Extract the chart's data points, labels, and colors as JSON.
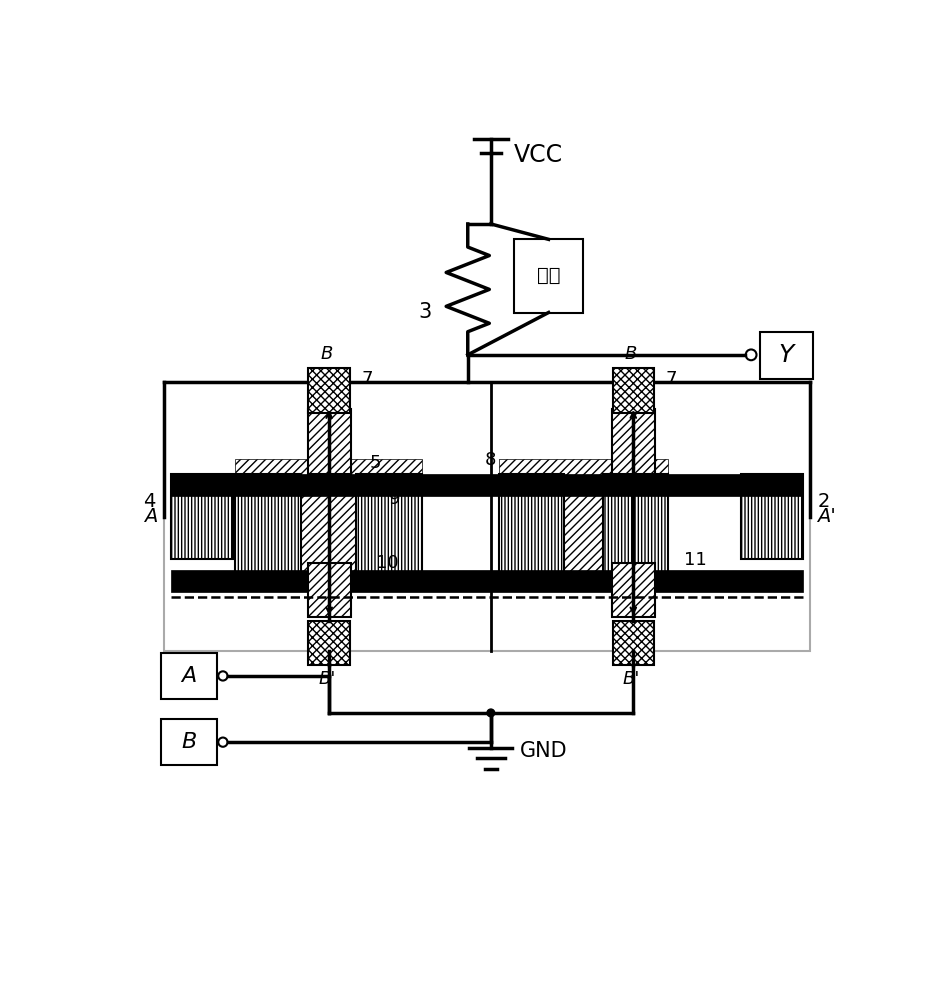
{
  "bg_color": "#ffffff",
  "line_color": "#000000",
  "vcc_label": "VCC",
  "gnd_label": "GND",
  "resistor_label": "电阵",
  "y_label": "Y",
  "a_label": "A",
  "b_label": "B"
}
